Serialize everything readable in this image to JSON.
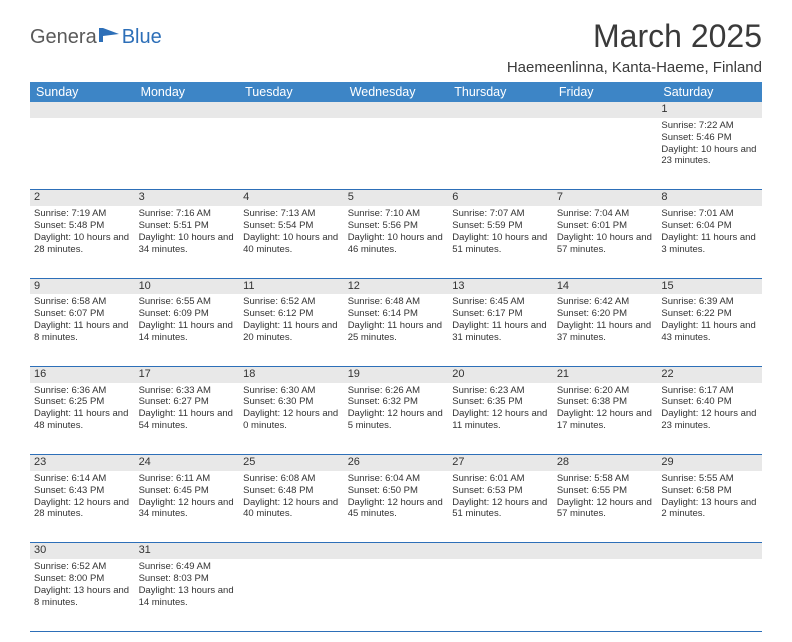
{
  "logo": {
    "part1": "Genera",
    "part2": "Blue"
  },
  "title": "March 2025",
  "location": "Haemeenlinna, Kanta-Haeme, Finland",
  "colors": {
    "header_bg": "#3d85c6",
    "header_text": "#ffffff",
    "daynum_bg": "#e8e8e8",
    "border": "#2d6fb8",
    "text": "#333333",
    "logo_gray": "#5a5a5a",
    "logo_blue": "#2d6fb8"
  },
  "typography": {
    "title_fontsize": 32,
    "location_fontsize": 15,
    "header_fontsize": 12.5,
    "cell_fontsize": 9.5
  },
  "days_of_week": [
    "Sunday",
    "Monday",
    "Tuesday",
    "Wednesday",
    "Thursday",
    "Friday",
    "Saturday"
  ],
  "weeks": [
    [
      null,
      null,
      null,
      null,
      null,
      null,
      {
        "n": "1",
        "sunrise": "7:22 AM",
        "sunset": "5:46 PM",
        "daylight": "10 hours and 23 minutes."
      }
    ],
    [
      {
        "n": "2",
        "sunrise": "7:19 AM",
        "sunset": "5:48 PM",
        "daylight": "10 hours and 28 minutes."
      },
      {
        "n": "3",
        "sunrise": "7:16 AM",
        "sunset": "5:51 PM",
        "daylight": "10 hours and 34 minutes."
      },
      {
        "n": "4",
        "sunrise": "7:13 AM",
        "sunset": "5:54 PM",
        "daylight": "10 hours and 40 minutes."
      },
      {
        "n": "5",
        "sunrise": "7:10 AM",
        "sunset": "5:56 PM",
        "daylight": "10 hours and 46 minutes."
      },
      {
        "n": "6",
        "sunrise": "7:07 AM",
        "sunset": "5:59 PM",
        "daylight": "10 hours and 51 minutes."
      },
      {
        "n": "7",
        "sunrise": "7:04 AM",
        "sunset": "6:01 PM",
        "daylight": "10 hours and 57 minutes."
      },
      {
        "n": "8",
        "sunrise": "7:01 AM",
        "sunset": "6:04 PM",
        "daylight": "11 hours and 3 minutes."
      }
    ],
    [
      {
        "n": "9",
        "sunrise": "6:58 AM",
        "sunset": "6:07 PM",
        "daylight": "11 hours and 8 minutes."
      },
      {
        "n": "10",
        "sunrise": "6:55 AM",
        "sunset": "6:09 PM",
        "daylight": "11 hours and 14 minutes."
      },
      {
        "n": "11",
        "sunrise": "6:52 AM",
        "sunset": "6:12 PM",
        "daylight": "11 hours and 20 minutes."
      },
      {
        "n": "12",
        "sunrise": "6:48 AM",
        "sunset": "6:14 PM",
        "daylight": "11 hours and 25 minutes."
      },
      {
        "n": "13",
        "sunrise": "6:45 AM",
        "sunset": "6:17 PM",
        "daylight": "11 hours and 31 minutes."
      },
      {
        "n": "14",
        "sunrise": "6:42 AM",
        "sunset": "6:20 PM",
        "daylight": "11 hours and 37 minutes."
      },
      {
        "n": "15",
        "sunrise": "6:39 AM",
        "sunset": "6:22 PM",
        "daylight": "11 hours and 43 minutes."
      }
    ],
    [
      {
        "n": "16",
        "sunrise": "6:36 AM",
        "sunset": "6:25 PM",
        "daylight": "11 hours and 48 minutes."
      },
      {
        "n": "17",
        "sunrise": "6:33 AM",
        "sunset": "6:27 PM",
        "daylight": "11 hours and 54 minutes."
      },
      {
        "n": "18",
        "sunrise": "6:30 AM",
        "sunset": "6:30 PM",
        "daylight": "12 hours and 0 minutes."
      },
      {
        "n": "19",
        "sunrise": "6:26 AM",
        "sunset": "6:32 PM",
        "daylight": "12 hours and 5 minutes."
      },
      {
        "n": "20",
        "sunrise": "6:23 AM",
        "sunset": "6:35 PM",
        "daylight": "12 hours and 11 minutes."
      },
      {
        "n": "21",
        "sunrise": "6:20 AM",
        "sunset": "6:38 PM",
        "daylight": "12 hours and 17 minutes."
      },
      {
        "n": "22",
        "sunrise": "6:17 AM",
        "sunset": "6:40 PM",
        "daylight": "12 hours and 23 minutes."
      }
    ],
    [
      {
        "n": "23",
        "sunrise": "6:14 AM",
        "sunset": "6:43 PM",
        "daylight": "12 hours and 28 minutes."
      },
      {
        "n": "24",
        "sunrise": "6:11 AM",
        "sunset": "6:45 PM",
        "daylight": "12 hours and 34 minutes."
      },
      {
        "n": "25",
        "sunrise": "6:08 AM",
        "sunset": "6:48 PM",
        "daylight": "12 hours and 40 minutes."
      },
      {
        "n": "26",
        "sunrise": "6:04 AM",
        "sunset": "6:50 PM",
        "daylight": "12 hours and 45 minutes."
      },
      {
        "n": "27",
        "sunrise": "6:01 AM",
        "sunset": "6:53 PM",
        "daylight": "12 hours and 51 minutes."
      },
      {
        "n": "28",
        "sunrise": "5:58 AM",
        "sunset": "6:55 PM",
        "daylight": "12 hours and 57 minutes."
      },
      {
        "n": "29",
        "sunrise": "5:55 AM",
        "sunset": "6:58 PM",
        "daylight": "13 hours and 2 minutes."
      }
    ],
    [
      {
        "n": "30",
        "sunrise": "6:52 AM",
        "sunset": "8:00 PM",
        "daylight": "13 hours and 8 minutes."
      },
      {
        "n": "31",
        "sunrise": "6:49 AM",
        "sunset": "8:03 PM",
        "daylight": "13 hours and 14 minutes."
      },
      null,
      null,
      null,
      null,
      null
    ]
  ],
  "labels": {
    "sunrise": "Sunrise:",
    "sunset": "Sunset:",
    "daylight": "Daylight:"
  }
}
